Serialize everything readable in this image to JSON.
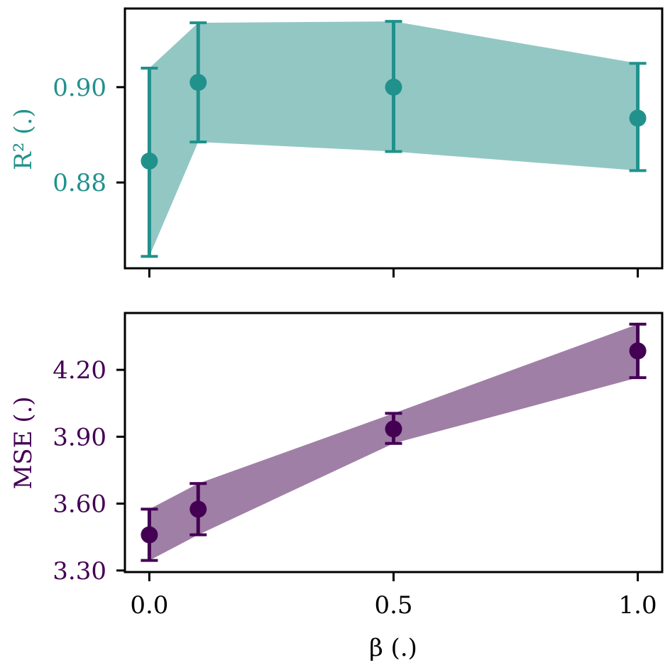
{
  "chart_data": [
    {
      "type": "line",
      "panel": "top",
      "ylabel": "R² (.)",
      "color": "#21918c",
      "band_color": "#93c7c4",
      "x": [
        0.0,
        0.1,
        0.5,
        1.0
      ],
      "y": [
        0.8845,
        0.901,
        0.9,
        0.8935
      ],
      "yerr_low": [
        0.8645,
        0.8885,
        0.8865,
        0.8825
      ],
      "yerr_high": [
        0.904,
        0.9135,
        0.9138,
        0.905
      ],
      "yticks": [
        0.88,
        0.9
      ],
      "ytick_labels": [
        "0.88",
        "0.90"
      ],
      "ylim": [
        0.862,
        0.9165
      ],
      "xlim": [
        -0.05,
        1.05
      ],
      "xticks": [
        0.0,
        0.5,
        1.0
      ],
      "grid": false
    },
    {
      "type": "line",
      "panel": "bottom",
      "ylabel": "MSE (.)",
      "xlabel": "β (.)",
      "color": "#440154",
      "band_color": "#a07fa6",
      "x": [
        0.0,
        0.1,
        0.5,
        1.0
      ],
      "y": [
        3.46,
        3.575,
        3.935,
        4.285
      ],
      "yerr_low": [
        3.345,
        3.46,
        3.87,
        4.165
      ],
      "yerr_high": [
        3.575,
        3.69,
        4.005,
        4.405
      ],
      "yticks": [
        3.3,
        3.6,
        3.9,
        4.2
      ],
      "ytick_labels": [
        "3.30",
        "3.60",
        "3.90",
        "4.20"
      ],
      "ylim": [
        3.293,
        4.455
      ],
      "xlim": [
        -0.05,
        1.05
      ],
      "xticks": [
        0.0,
        0.5,
        1.0
      ],
      "xtick_labels": [
        "0.0",
        "0.5",
        "1.0"
      ],
      "grid": false
    }
  ]
}
